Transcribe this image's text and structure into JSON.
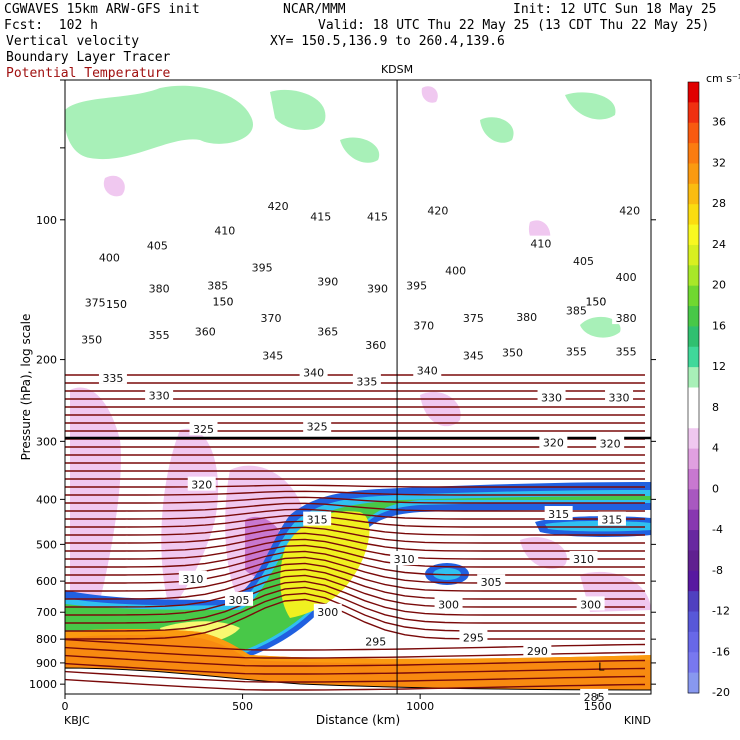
{
  "header": {
    "model": "CGWAVES 15km ARW-GFS init",
    "fcst": "Fcst:  102 h",
    "org": "NCAR/MMM",
    "init": "Init: 12 UTC Sun 18 May 25",
    "valid": "Valid: 18 UTC Thu 22 May 25 (13 CDT Thu 22 May 25)",
    "xy": "XY= 150.5,136.9 to 260.4,139.6",
    "fields": [
      "Vertical velocity",
      "Boundary Layer Tracer",
      "Potential Temperature"
    ]
  },
  "chart_data": {
    "type": "heatmap",
    "station_marker": {
      "label": "KDSM",
      "x_km": 935
    },
    "xlabel": "Distance (km)",
    "ylabel": "Pressure (hPa), log scale",
    "x_ticks": [
      0,
      500,
      1000,
      1500
    ],
    "xlim": [
      0,
      1650
    ],
    "x_end_labels": {
      "left": "KBJC",
      "right": "KIND"
    },
    "y_ticks": [
      100,
      200,
      300,
      400,
      500,
      600,
      700,
      800,
      900,
      1000
    ],
    "ylim_hPa": [
      1050,
      50
    ],
    "y_scale": "log",
    "colorbar": {
      "unit": "cm s⁻¹",
      "labels": [
        36,
        32,
        28,
        24,
        20,
        16,
        12,
        8,
        4,
        0,
        -4,
        -8,
        -12,
        -16,
        -20
      ],
      "colors": [
        "#e00000",
        "#f03010",
        "#f85a10",
        "#fb7c10",
        "#fb9a10",
        "#fbbc10",
        "#fbdc10",
        "#f8f820",
        "#d8f020",
        "#a8e828",
        "#70d830",
        "#48c848",
        "#30c070",
        "#40d89a",
        "#a8f0b8",
        "#ffffff",
        "#ffffff",
        "#f0c8f0",
        "#e0a0e0",
        "#c878d0",
        "#a858c0",
        "#8838b0",
        "#6828a0",
        "#602090",
        "#5818a0",
        "#5040c0",
        "#5858d8",
        "#6868e8",
        "#7878f0",
        "#8898f0"
      ]
    },
    "theta_labels": [
      {
        "v": "420",
        "x_km": 600,
        "p": 93
      },
      {
        "v": "415",
        "x_km": 720,
        "p": 98
      },
      {
        "v": "415",
        "x_km": 880,
        "p": 98
      },
      {
        "v": "420",
        "x_km": 1050,
        "p": 95
      },
      {
        "v": "420",
        "x_km": 1590,
        "p": 95
      },
      {
        "v": "400",
        "x_km": 125,
        "p": 120
      },
      {
        "v": "405",
        "x_km": 260,
        "p": 113
      },
      {
        "v": "410",
        "x_km": 450,
        "p": 105
      },
      {
        "v": "410",
        "x_km": 1340,
        "p": 112
      },
      {
        "v": "405",
        "x_km": 1460,
        "p": 122
      },
      {
        "v": "400",
        "x_km": 1580,
        "p": 132
      },
      {
        "v": "395",
        "x_km": 555,
        "p": 126
      },
      {
        "v": "390",
        "x_km": 740,
        "p": 135
      },
      {
        "v": "390",
        "x_km": 880,
        "p": 140
      },
      {
        "v": "395",
        "x_km": 990,
        "p": 138
      },
      {
        "v": "400",
        "x_km": 1100,
        "p": 128
      },
      {
        "v": "380",
        "x_km": 265,
        "p": 140
      },
      {
        "v": "385",
        "x_km": 430,
        "p": 138
      },
      {
        "v": "375",
        "x_km": 85,
        "p": 150
      },
      {
        "v": "370",
        "x_km": 580,
        "p": 162
      },
      {
        "v": "365",
        "x_km": 740,
        "p": 173
      },
      {
        "v": "370",
        "x_km": 1010,
        "p": 168
      },
      {
        "v": "375",
        "x_km": 1150,
        "p": 162
      },
      {
        "v": "380",
        "x_km": 1300,
        "p": 161
      },
      {
        "v": "385",
        "x_km": 1440,
        "p": 156
      },
      {
        "v": "380",
        "x_km": 1580,
        "p": 162
      },
      {
        "v": "350",
        "x_km": 75,
        "p": 180
      },
      {
        "v": "355",
        "x_km": 265,
        "p": 176
      },
      {
        "v": "360",
        "x_km": 395,
        "p": 173
      },
      {
        "v": "360",
        "x_km": 875,
        "p": 185
      },
      {
        "v": "345",
        "x_km": 585,
        "p": 195
      },
      {
        "v": "340",
        "x_km": 700,
        "p": 212
      },
      {
        "v": "345",
        "x_km": 1150,
        "p": 195
      },
      {
        "v": "350",
        "x_km": 1260,
        "p": 192
      },
      {
        "v": "355",
        "x_km": 1440,
        "p": 191
      },
      {
        "v": "355",
        "x_km": 1580,
        "p": 191
      },
      {
        "v": "335",
        "x_km": 135,
        "p": 218
      },
      {
        "v": "330",
        "x_km": 265,
        "p": 238
      },
      {
        "v": "335",
        "x_km": 850,
        "p": 222
      },
      {
        "v": "340",
        "x_km": 1020,
        "p": 210
      },
      {
        "v": "330",
        "x_km": 1370,
        "p": 240
      },
      {
        "v": "330",
        "x_km": 1560,
        "p": 240
      },
      {
        "v": "325",
        "x_km": 390,
        "p": 281
      },
      {
        "v": "325",
        "x_km": 710,
        "p": 277
      },
      {
        "v": "320",
        "x_km": 1375,
        "p": 300
      },
      {
        "v": "320",
        "x_km": 1535,
        "p": 302
      },
      {
        "v": "320",
        "x_km": 385,
        "p": 370
      },
      {
        "v": "315",
        "x_km": 710,
        "p": 440
      },
      {
        "v": "315",
        "x_km": 1390,
        "p": 428
      },
      {
        "v": "315",
        "x_km": 1540,
        "p": 440
      },
      {
        "v": "310",
        "x_km": 360,
        "p": 590
      },
      {
        "v": "310",
        "x_km": 955,
        "p": 535
      },
      {
        "v": "310",
        "x_km": 1460,
        "p": 535
      },
      {
        "v": "305",
        "x_km": 490,
        "p": 655
      },
      {
        "v": "305",
        "x_km": 1200,
        "p": 600
      },
      {
        "v": "300",
        "x_km": 740,
        "p": 695
      },
      {
        "v": "300",
        "x_km": 1080,
        "p": 670
      },
      {
        "v": "300",
        "x_km": 1480,
        "p": 670
      },
      {
        "v": "295",
        "x_km": 875,
        "p": 805
      },
      {
        "v": "295",
        "x_km": 1150,
        "p": 790
      },
      {
        "v": "290",
        "x_km": 1330,
        "p": 845
      },
      {
        "v": "285",
        "x_km": 1490,
        "p": 1060
      }
    ],
    "tropopause_markers": [
      {
        "label": "150",
        "x_km": 145,
        "p": 152
      },
      {
        "label": "150",
        "x_km": 445,
        "p": 150
      },
      {
        "label": "150",
        "x_km": 1495,
        "p": 150
      }
    ],
    "map_letters": [
      {
        "label": "L",
        "x_km": 1510,
        "p": 935
      }
    ]
  }
}
